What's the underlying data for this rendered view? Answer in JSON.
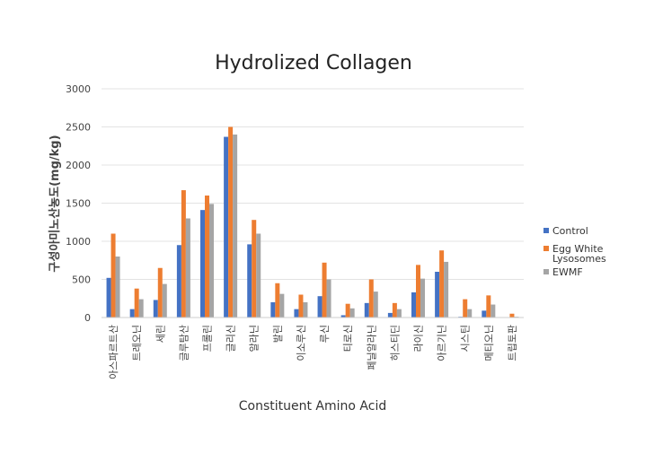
{
  "chart_data": {
    "type": "bar",
    "title": "Hydrolized Collagen",
    "xlabel": "Constituent Amino Acid",
    "ylabel": "구성아미노산농도(mg/kg)",
    "ylim": [
      0,
      3000
    ],
    "yticks": [
      0,
      500,
      1000,
      1500,
      2000,
      2500,
      3000
    ],
    "grid": true,
    "legend_position": "right",
    "categories": [
      "아스파르트산",
      "트레오닌",
      "세린",
      "글루탐산",
      "프롤린",
      "글리신",
      "알라닌",
      "발린",
      "이소루신",
      "루신",
      "티로신",
      "페닐알라닌",
      "히스티딘",
      "라이신",
      "아르기닌",
      "시스틴",
      "메티오닌",
      "트립토판"
    ],
    "series": [
      {
        "name": "Control",
        "color": "#4472C4",
        "values": [
          520,
          110,
          230,
          950,
          1410,
          2370,
          960,
          200,
          110,
          280,
          30,
          190,
          60,
          330,
          600,
          10,
          90,
          0
        ]
      },
      {
        "name": "Egg White Lysosomes",
        "color": "#ED7D31",
        "values": [
          1100,
          380,
          650,
          1670,
          1600,
          2500,
          1280,
          450,
          300,
          720,
          180,
          500,
          190,
          690,
          880,
          240,
          290,
          50
        ]
      },
      {
        "name": "EWMF",
        "color": "#A5A5A5",
        "values": [
          800,
          240,
          440,
          1300,
          1490,
          2400,
          1100,
          310,
          200,
          500,
          120,
          340,
          110,
          510,
          730,
          110,
          170,
          10
        ]
      }
    ]
  }
}
